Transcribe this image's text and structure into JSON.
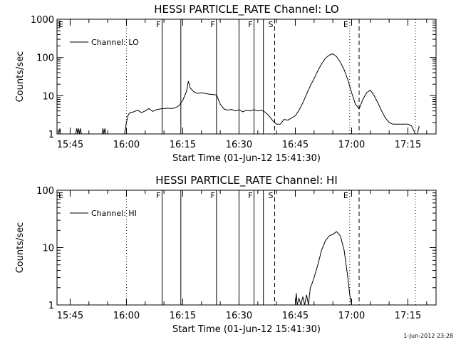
{
  "footer": {
    "stamp": "1-Jun-2012 23:28"
  },
  "chart_data": [
    {
      "type": "line",
      "title": "HESSI PARTICLE_RATE Channel: LO",
      "xlabel": "Start Time (01-Jun-12 15:41:30)",
      "ylabel": "Counts/sec",
      "y_scale": "log",
      "ylim": [
        1,
        1000
      ],
      "xlim": [
        "15:41:30",
        "17:22:30"
      ],
      "x_ticks": [
        "15:45",
        "16:00",
        "16:15",
        "16:30",
        "16:45",
        "17:00",
        "17:15"
      ],
      "y_ticks": [
        "1",
        "10",
        "100",
        "1000"
      ],
      "legend": {
        "position": "top-left",
        "entries": [
          "Channel: LO"
        ]
      },
      "series": [
        {
          "name": "Channel: LO",
          "color": "#000000",
          "points": [
            [
              "15:41:45",
              1.3
            ],
            [
              "15:42:00",
              1.0
            ],
            [
              "15:42:15",
              1.4
            ],
            [
              "15:42:30",
              1.0
            ],
            [
              "15:46:30",
              1.0
            ],
            [
              "15:46:45",
              1.4
            ],
            [
              "15:47:00",
              1.0
            ],
            [
              "15:47:15",
              1.4
            ],
            [
              "15:47:30",
              1.0
            ],
            [
              "15:47:45",
              1.4
            ],
            [
              "15:48:00",
              1.0
            ],
            [
              "15:53:30",
              1.0
            ],
            [
              "15:53:45",
              1.4
            ],
            [
              "15:54:00",
              1.0
            ],
            [
              "15:54:15",
              1.4
            ],
            [
              "15:54:30",
              1.0
            ],
            [
              "15:59:30",
              1.0
            ],
            [
              "16:00:00",
              2.0
            ],
            [
              "16:00:30",
              3.2
            ],
            [
              "16:01:00",
              3.6
            ],
            [
              "16:02:00",
              3.8
            ],
            [
              "16:03:00",
              4.2
            ],
            [
              "16:04:00",
              3.6
            ],
            [
              "16:05:00",
              4.0
            ],
            [
              "16:06:00",
              4.6
            ],
            [
              "16:07:00",
              3.9
            ],
            [
              "16:08:00",
              4.3
            ],
            [
              "16:09:00",
              4.5
            ],
            [
              "16:10:00",
              4.6
            ],
            [
              "16:11:00",
              4.7
            ],
            [
              "16:12:00",
              4.6
            ],
            [
              "16:13:00",
              4.8
            ],
            [
              "16:14:00",
              5.5
            ],
            [
              "16:15:00",
              7.5
            ],
            [
              "16:16:00",
              13.0
            ],
            [
              "16:16:30",
              24.0
            ],
            [
              "16:17:00",
              16.0
            ],
            [
              "16:18:00",
              12.5
            ],
            [
              "16:19:00",
              11.5
            ],
            [
              "16:20:00",
              12.0
            ],
            [
              "16:22:00",
              11.0
            ],
            [
              "16:24:00",
              10.5
            ],
            [
              "16:25:00",
              6.0
            ],
            [
              "16:26:00",
              4.5
            ],
            [
              "16:27:00",
              4.2
            ],
            [
              "16:28:00",
              4.4
            ],
            [
              "16:29:00",
              4.0
            ],
            [
              "16:30:00",
              4.3
            ],
            [
              "16:31:00",
              3.8
            ],
            [
              "16:32:00",
              4.2
            ],
            [
              "16:33:00",
              4.0
            ],
            [
              "16:34:00",
              4.3
            ],
            [
              "16:35:00",
              4.0
            ],
            [
              "16:36:00",
              4.2
            ],
            [
              "16:37:00",
              3.7
            ],
            [
              "16:38:00",
              3.0
            ],
            [
              "16:39:00",
              2.2
            ],
            [
              "16:40:00",
              1.8
            ],
            [
              "16:41:00",
              1.8
            ],
            [
              "16:42:00",
              2.4
            ],
            [
              "16:43:00",
              2.3
            ],
            [
              "16:44:00",
              2.6
            ],
            [
              "16:45:00",
              3.0
            ],
            [
              "16:46:00",
              4.2
            ],
            [
              "16:47:00",
              6.5
            ],
            [
              "16:48:00",
              11.0
            ],
            [
              "16:49:00",
              18.0
            ],
            [
              "16:50:00",
              28.0
            ],
            [
              "16:51:00",
              45.0
            ],
            [
              "16:52:00",
              68.0
            ],
            [
              "16:53:00",
              95.0
            ],
            [
              "16:54:00",
              115.0
            ],
            [
              "16:55:00",
              125.0
            ],
            [
              "16:56:00",
              105.0
            ],
            [
              "16:57:00",
              75.0
            ],
            [
              "16:58:00",
              48.0
            ],
            [
              "16:59:00",
              26.0
            ],
            [
              "17:00:00",
              12.0
            ],
            [
              "17:01:00",
              6.0
            ],
            [
              "17:02:00",
              4.5
            ],
            [
              "17:03:00",
              8.0
            ],
            [
              "17:04:00",
              12.0
            ],
            [
              "17:05:00",
              14.0
            ],
            [
              "17:06:00",
              10.0
            ],
            [
              "17:07:00",
              6.5
            ],
            [
              "17:08:00",
              4.0
            ],
            [
              "17:09:00",
              2.6
            ],
            [
              "17:10:00",
              2.0
            ],
            [
              "17:11:00",
              1.8
            ],
            [
              "17:15:00",
              1.8
            ],
            [
              "17:16:00",
              1.6
            ],
            [
              "17:17:00",
              1.0
            ],
            [
              "17:17:30",
              1.0
            ],
            [
              "17:18:00",
              1.6
            ]
          ]
        }
      ],
      "vlines": [
        {
          "time": "16:00:00",
          "style": "dotted",
          "label": ""
        },
        {
          "time": "16:09:30",
          "style": "solid",
          "label": "F"
        },
        {
          "time": "16:14:30",
          "style": "solid",
          "label": ""
        },
        {
          "time": "16:24:00",
          "style": "solid",
          "label": "F"
        },
        {
          "time": "16:30:00",
          "style": "solid",
          "label": ""
        },
        {
          "time": "16:34:00",
          "style": "solid",
          "label": "F"
        },
        {
          "time": "16:36:30",
          "style": "solid",
          "label": ""
        },
        {
          "time": "16:39:30",
          "style": "dashed",
          "label": "S"
        },
        {
          "time": "16:59:30",
          "style": "dotted",
          "label": "E"
        },
        {
          "time": "17:02:00",
          "style": "dashed",
          "label": ""
        },
        {
          "time": "17:17:00",
          "style": "dotted",
          "label": ""
        }
      ],
      "corner_labels": [
        "E"
      ]
    },
    {
      "type": "line",
      "title": "HESSI PARTICLE_RATE Channel: HI",
      "xlabel": "Start Time (01-Jun-12 15:41:30)",
      "ylabel": "Counts/sec",
      "y_scale": "log",
      "ylim": [
        1,
        100
      ],
      "xlim": [
        "15:41:30",
        "17:22:30"
      ],
      "x_ticks": [
        "15:45",
        "16:00",
        "16:15",
        "16:30",
        "16:45",
        "17:00",
        "17:15"
      ],
      "y_ticks": [
        "1",
        "10",
        "100"
      ],
      "legend": {
        "position": "top-left",
        "entries": [
          "Channel: HI"
        ]
      },
      "series": [
        {
          "name": "Channel: HI",
          "color": "#000000",
          "points": [
            [
              "16:45:00",
              1.0
            ],
            [
              "16:45:15",
              1.6
            ],
            [
              "16:45:30",
              1.0
            ],
            [
              "16:46:00",
              1.3
            ],
            [
              "16:46:30",
              1.0
            ],
            [
              "16:47:00",
              1.4
            ],
            [
              "16:47:30",
              1.0
            ],
            [
              "16:48:00",
              1.5
            ],
            [
              "16:48:30",
              1.0
            ],
            [
              "16:49:00",
              2.0
            ],
            [
              "16:49:30",
              2.4
            ],
            [
              "16:50:00",
              3.0
            ],
            [
              "16:51:00",
              5.0
            ],
            [
              "16:52:00",
              9.0
            ],
            [
              "16:53:00",
              13.0
            ],
            [
              "16:54:00",
              16.0
            ],
            [
              "16:55:00",
              17.0
            ],
            [
              "16:56:00",
              19.0
            ],
            [
              "16:57:00",
              16.0
            ],
            [
              "16:58:00",
              9.0
            ],
            [
              "16:59:00",
              3.0
            ],
            [
              "16:59:30",
              1.5
            ],
            [
              "17:00:00",
              1.0
            ]
          ]
        }
      ],
      "vlines": [
        {
          "time": "16:00:00",
          "style": "dotted",
          "label": ""
        },
        {
          "time": "16:09:30",
          "style": "solid",
          "label": "F"
        },
        {
          "time": "16:14:30",
          "style": "solid",
          "label": ""
        },
        {
          "time": "16:24:00",
          "style": "solid",
          "label": "F"
        },
        {
          "time": "16:30:00",
          "style": "solid",
          "label": ""
        },
        {
          "time": "16:34:00",
          "style": "solid",
          "label": "F"
        },
        {
          "time": "16:36:30",
          "style": "solid",
          "label": ""
        },
        {
          "time": "16:39:30",
          "style": "dashed",
          "label": "S"
        },
        {
          "time": "16:59:30",
          "style": "dotted",
          "label": "E"
        },
        {
          "time": "17:02:00",
          "style": "dashed",
          "label": ""
        },
        {
          "time": "17:17:00",
          "style": "dotted",
          "label": ""
        }
      ],
      "corner_labels": [
        "E"
      ]
    }
  ]
}
